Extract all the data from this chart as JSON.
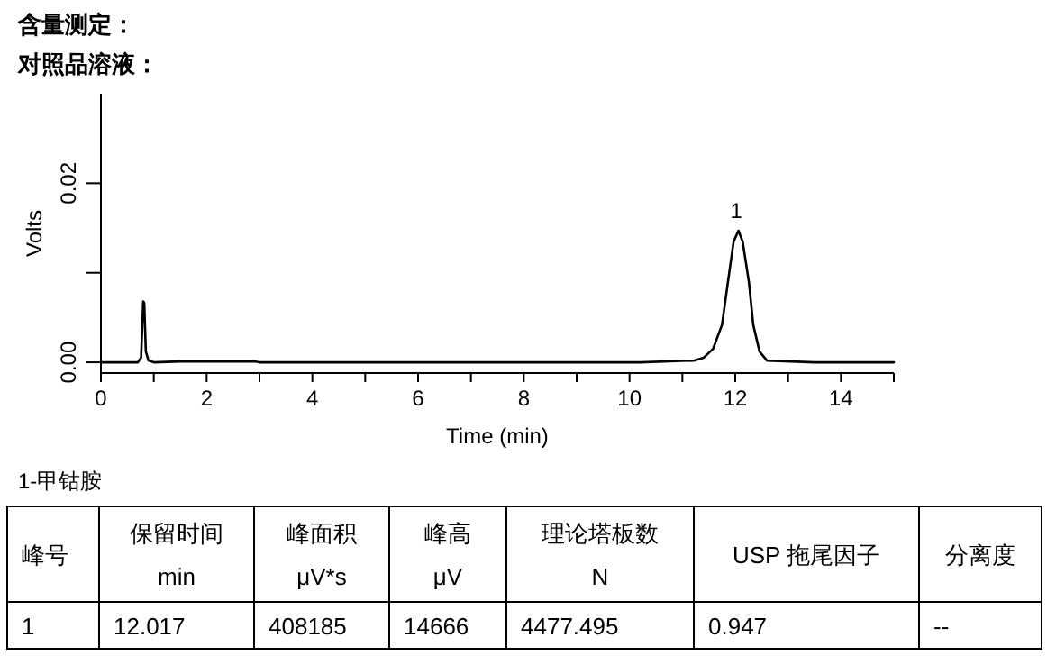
{
  "chart_data": {
    "type": "line",
    "title": "含量测定：",
    "subtitle": "对照品溶液：",
    "xlabel": "Time (min)",
    "ylabel": "Volts",
    "x": [
      0,
      0.3,
      0.7,
      0.76,
      0.8,
      0.82,
      0.85,
      0.9,
      1.0,
      1.5,
      2.9,
      3.0,
      5.5,
      7.7,
      10.2,
      11.23,
      11.4,
      11.58,
      11.75,
      11.86,
      11.97,
      12.06,
      12.14,
      12.26,
      12.34,
      12.46,
      12.6,
      13.5,
      15
    ],
    "series": [
      {
        "color": "#000000",
        "values": [
          0,
          0,
          0,
          0.0005,
          0.0068,
          0.0066,
          0.0012,
          0.0002,
          0,
          0.0001,
          0.0001,
          0,
          0,
          0,
          0,
          0.0002,
          0.0005,
          0.0015,
          0.0042,
          0.0089,
          0.0135,
          0.0147,
          0.0135,
          0.0089,
          0.0042,
          0.0012,
          0.0002,
          0,
          0
        ]
      }
    ],
    "xlim": [
      0,
      15
    ],
    "ylim": [
      -0.0012,
      0.03
    ],
    "xticks": [
      0,
      {
        "value": 1,
        "label": null
      },
      2,
      {
        "value": 3,
        "label": null
      },
      4,
      {
        "value": 5,
        "label": null
      },
      6,
      {
        "value": 7,
        "label": null
      },
      8,
      {
        "value": 9,
        "label": null
      },
      10,
      {
        "value": 11,
        "label": null
      },
      12,
      {
        "value": 13,
        "label": null
      },
      14,
      {
        "value": 15,
        "label": null
      }
    ],
    "yticks": [
      {
        "value": 0,
        "label": "0.00"
      },
      {
        "value": 0.01,
        "label": null
      },
      {
        "value": 0.02,
        "label": "0.02"
      }
    ],
    "grid": false,
    "marker": "none",
    "line_style": "solid",
    "annotations": [
      {
        "text": "1",
        "x": 12.02,
        "y": 0.0147
      },
      "1-甲钴胺",
      "峰号",
      "保留时间\nmin",
      "峰面积\nμV*s",
      "峰高\nμV",
      "理论塔板数\nN",
      "USP 拖尾因子",
      "分离度",
      "1",
      "12.017",
      "408185",
      "14666",
      "4477.495",
      "0.947",
      "--"
    ]
  }
}
